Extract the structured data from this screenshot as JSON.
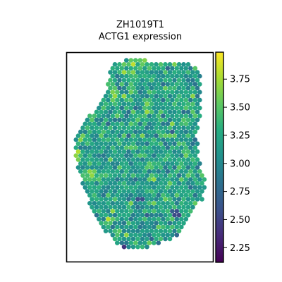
{
  "chart_data": {
    "type": "scatter",
    "title_line1": "ZH1019T1",
    "title_line2": "ACTG1 expression",
    "xlabel": "",
    "ylabel": "",
    "colormap": "viridis",
    "color_range": [
      2.12,
      3.99
    ],
    "colorbar_ticks": [
      "2.25",
      "2.50",
      "2.75",
      "3.00",
      "3.25",
      "3.50",
      "3.75"
    ],
    "colorbar_tick_values": [
      2.25,
      2.5,
      2.75,
      3.0,
      3.25,
      3.5,
      3.75
    ],
    "mean_value": 3.2,
    "value_spread": 0.32,
    "seed": 1019,
    "grid": false,
    "legend": "colorbar-right",
    "high_spots": [
      {
        "x": 0.3,
        "y": 0.04,
        "v": 3.95
      },
      {
        "x": 0.52,
        "y": 0.03,
        "v": 3.92
      },
      {
        "x": 0.45,
        "y": 0.05,
        "v": 3.88
      },
      {
        "x": 0.33,
        "y": 0.2,
        "v": 3.85
      },
      {
        "x": 0.07,
        "y": 0.48,
        "v": 3.9
      },
      {
        "x": 0.18,
        "y": 0.58,
        "v": 3.85
      },
      {
        "x": 0.92,
        "y": 0.4,
        "v": 3.88
      },
      {
        "x": 0.29,
        "y": 0.8,
        "v": 3.9
      },
      {
        "x": 0.58,
        "y": 0.6,
        "v": 3.8
      }
    ],
    "low_spots": [
      {
        "x": 0.95,
        "y": 0.47,
        "v": 2.15
      },
      {
        "x": 0.82,
        "y": 0.88,
        "v": 2.2
      },
      {
        "x": 0.38,
        "y": 0.93,
        "v": 2.25
      },
      {
        "x": 0.65,
        "y": 0.92,
        "v": 2.3
      },
      {
        "x": 0.5,
        "y": 0.7,
        "v": 2.4
      },
      {
        "x": 0.75,
        "y": 0.77,
        "v": 2.3
      },
      {
        "x": 0.42,
        "y": 0.95,
        "v": 2.2
      }
    ]
  }
}
